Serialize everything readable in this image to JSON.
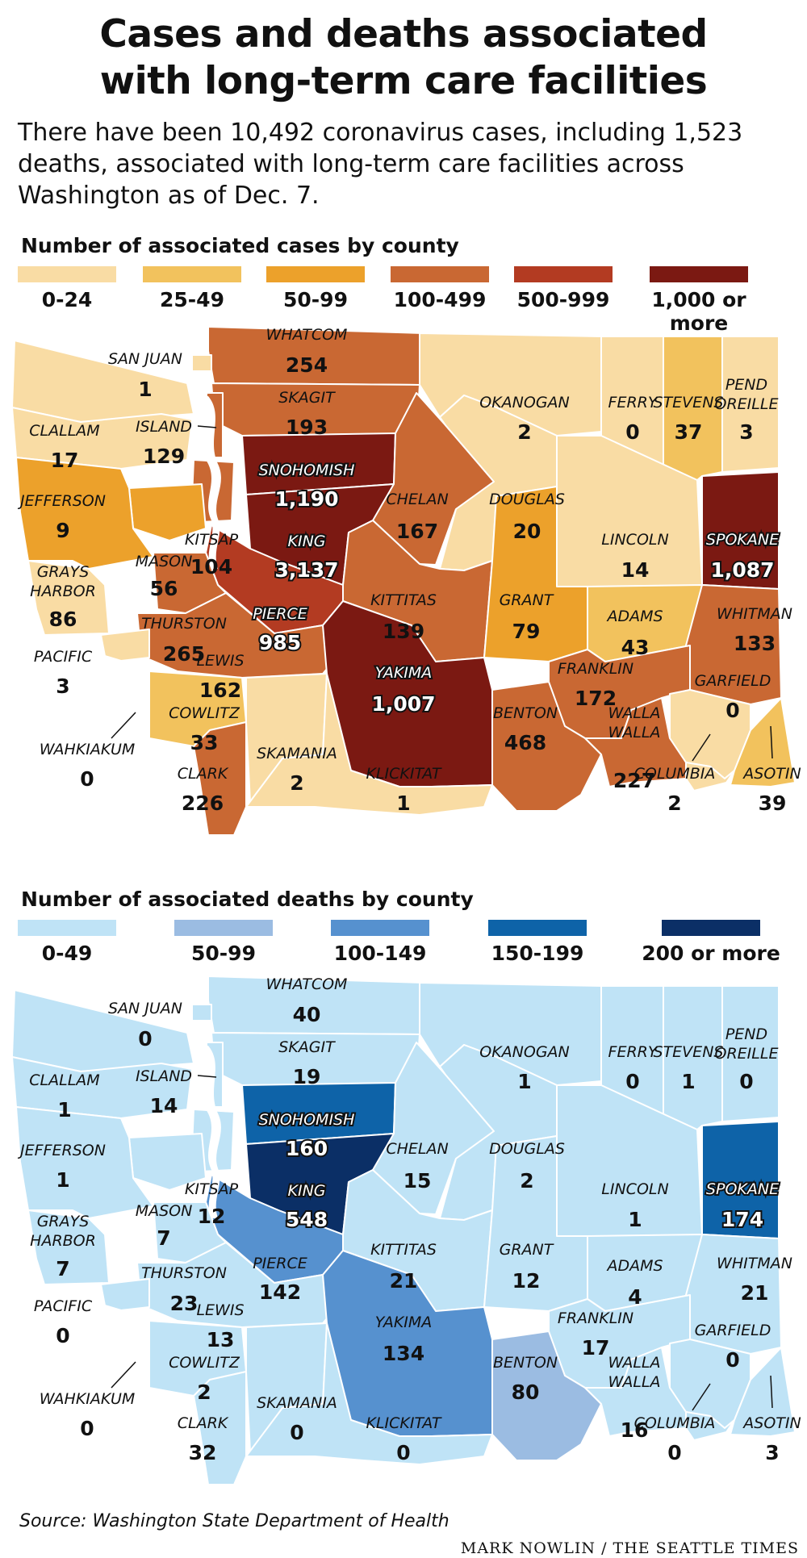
{
  "title_line1": "Cases and deaths associated",
  "title_line2": "with long-term care facilities",
  "intro": "There have been 10,492 coronavirus cases, including 1,523 deaths, associated with long-term care facilities across Washington as of Dec. 7.",
  "cases_map": {
    "legend_title": "Number of associated cases by county",
    "legend": [
      {
        "label": "0-24",
        "color": "#f9dca4"
      },
      {
        "label": "25-49",
        "color": "#f2c25d"
      },
      {
        "label": "50-99",
        "color": "#eca12b"
      },
      {
        "label": "100-499",
        "color": "#c96833"
      },
      {
        "label": "500-999",
        "color": "#b33b22"
      },
      {
        "label": "1,000 or more",
        "color": "#7b1912"
      }
    ],
    "counties": [
      {
        "name": "WHATCOM",
        "value": "254",
        "color": "#c96833"
      },
      {
        "name": "SAN JUAN",
        "value": "1",
        "color": "#f9dca4"
      },
      {
        "name": "SKAGIT",
        "value": "193",
        "color": "#c96833"
      },
      {
        "name": "OKANOGAN",
        "value": "2",
        "color": "#f9dca4"
      },
      {
        "name": "FERRY",
        "value": "0",
        "color": "#f9dca4"
      },
      {
        "name": "STEVENS",
        "value": "37",
        "color": "#f2c25d"
      },
      {
        "name": "PEND OREILLE",
        "value": "3",
        "color": "#f9dca4"
      },
      {
        "name": "CLALLAM",
        "value": "17",
        "color": "#f9dca4"
      },
      {
        "name": "ISLAND",
        "value": "129",
        "color": "#c96833"
      },
      {
        "name": "SNOHOMISH",
        "value": "1,190",
        "color": "#7b1912"
      },
      {
        "name": "CHELAN",
        "value": "167",
        "color": "#c96833"
      },
      {
        "name": "DOUGLAS",
        "value": "20",
        "color": "#f9dca4"
      },
      {
        "name": "JEFFERSON",
        "value": "9",
        "color": "#f9dca4"
      },
      {
        "name": "KITSAP",
        "value": "104",
        "color": "#c96833"
      },
      {
        "name": "KING",
        "value": "3,137",
        "color": "#7b1912"
      },
      {
        "name": "LINCOLN",
        "value": "14",
        "color": "#f9dca4"
      },
      {
        "name": "SPOKANE",
        "value": "1,087",
        "color": "#7b1912"
      },
      {
        "name": "MASON",
        "value": "56",
        "color": "#eca12b"
      },
      {
        "name": "GRAYS HARBOR",
        "value": "86",
        "color": "#eca12b"
      },
      {
        "name": "KITTITAS",
        "value": "139",
        "color": "#c96833"
      },
      {
        "name": "GRANT",
        "value": "79",
        "color": "#eca12b"
      },
      {
        "name": "ADAMS",
        "value": "43",
        "color": "#f2c25d"
      },
      {
        "name": "WHITMAN",
        "value": "133",
        "color": "#c96833"
      },
      {
        "name": "PIERCE",
        "value": "985",
        "color": "#b33b22"
      },
      {
        "name": "THURSTON",
        "value": "265",
        "color": "#c96833"
      },
      {
        "name": "PACIFIC",
        "value": "3",
        "color": "#f9dca4"
      },
      {
        "name": "LEWIS",
        "value": "162",
        "color": "#c96833"
      },
      {
        "name": "YAKIMA",
        "value": "1,007",
        "color": "#7b1912"
      },
      {
        "name": "FRANKLIN",
        "value": "172",
        "color": "#c96833"
      },
      {
        "name": "GARFIELD",
        "value": "0",
        "color": "#f9dca4"
      },
      {
        "name": "COWLITZ",
        "value": "33",
        "color": "#f2c25d"
      },
      {
        "name": "BENTON",
        "value": "468",
        "color": "#c96833"
      },
      {
        "name": "WALLA WALLA",
        "value": "227",
        "color": "#c96833"
      },
      {
        "name": "WAHKIAKUM",
        "value": "0",
        "color": "#f9dca4"
      },
      {
        "name": "SKAMANIA",
        "value": "2",
        "color": "#f9dca4"
      },
      {
        "name": "KLICKITAT",
        "value": "1",
        "color": "#f9dca4"
      },
      {
        "name": "CLARK",
        "value": "226",
        "color": "#c96833"
      },
      {
        "name": "COLUMBIA",
        "value": "2",
        "color": "#f9dca4"
      },
      {
        "name": "ASOTIN",
        "value": "39",
        "color": "#f2c25d"
      }
    ]
  },
  "deaths_map": {
    "legend_title": "Number of associated deaths by county",
    "legend": [
      {
        "label": "0-49",
        "color": "#bfe3f6"
      },
      {
        "label": "50-99",
        "color": "#9bbce2"
      },
      {
        "label": "100-149",
        "color": "#5691cf"
      },
      {
        "label": "150-199",
        "color": "#0e63a8"
      },
      {
        "label": "200 or more",
        "color": "#0b2f66"
      }
    ],
    "counties": [
      {
        "name": "WHATCOM",
        "value": "40",
        "color": "#bfe3f6"
      },
      {
        "name": "SAN JUAN",
        "value": "0",
        "color": "#bfe3f6"
      },
      {
        "name": "SKAGIT",
        "value": "19",
        "color": "#bfe3f6"
      },
      {
        "name": "OKANOGAN",
        "value": "1",
        "color": "#bfe3f6"
      },
      {
        "name": "FERRY",
        "value": "0",
        "color": "#bfe3f6"
      },
      {
        "name": "STEVENS",
        "value": "1",
        "color": "#bfe3f6"
      },
      {
        "name": "PEND OREILLE",
        "value": "0",
        "color": "#bfe3f6"
      },
      {
        "name": "CLALLAM",
        "value": "1",
        "color": "#bfe3f6"
      },
      {
        "name": "ISLAND",
        "value": "14",
        "color": "#bfe3f6"
      },
      {
        "name": "SNOHOMISH",
        "value": "160",
        "color": "#0e63a8"
      },
      {
        "name": "CHELAN",
        "value": "15",
        "color": "#bfe3f6"
      },
      {
        "name": "DOUGLAS",
        "value": "2",
        "color": "#bfe3f6"
      },
      {
        "name": "JEFFERSON",
        "value": "1",
        "color": "#bfe3f6"
      },
      {
        "name": "KITSAP",
        "value": "12",
        "color": "#bfe3f6"
      },
      {
        "name": "KING",
        "value": "548",
        "color": "#0b2f66"
      },
      {
        "name": "LINCOLN",
        "value": "1",
        "color": "#bfe3f6"
      },
      {
        "name": "SPOKANE",
        "value": "174",
        "color": "#0e63a8"
      },
      {
        "name": "MASON",
        "value": "7",
        "color": "#bfe3f6"
      },
      {
        "name": "GRAYS HARBOR",
        "value": "7",
        "color": "#bfe3f6"
      },
      {
        "name": "KITTITAS",
        "value": "21",
        "color": "#bfe3f6"
      },
      {
        "name": "GRANT",
        "value": "12",
        "color": "#bfe3f6"
      },
      {
        "name": "ADAMS",
        "value": "4",
        "color": "#bfe3f6"
      },
      {
        "name": "WHITMAN",
        "value": "21",
        "color": "#bfe3f6"
      },
      {
        "name": "PIERCE",
        "value": "142",
        "color": "#5691cf"
      },
      {
        "name": "THURSTON",
        "value": "23",
        "color": "#bfe3f6"
      },
      {
        "name": "PACIFIC",
        "value": "0",
        "color": "#bfe3f6"
      },
      {
        "name": "LEWIS",
        "value": "13",
        "color": "#bfe3f6"
      },
      {
        "name": "YAKIMA",
        "value": "134",
        "color": "#5691cf"
      },
      {
        "name": "FRANKLIN",
        "value": "17",
        "color": "#bfe3f6"
      },
      {
        "name": "GARFIELD",
        "value": "0",
        "color": "#bfe3f6"
      },
      {
        "name": "COWLITZ",
        "value": "2",
        "color": "#bfe3f6"
      },
      {
        "name": "BENTON",
        "value": "80",
        "color": "#9bbce2"
      },
      {
        "name": "WALLA WALLA",
        "value": "16",
        "color": "#bfe3f6"
      },
      {
        "name": "WAHKIAKUM",
        "value": "0",
        "color": "#bfe3f6"
      },
      {
        "name": "SKAMANIA",
        "value": "0",
        "color": "#bfe3f6"
      },
      {
        "name": "KLICKITAT",
        "value": "0",
        "color": "#bfe3f6"
      },
      {
        "name": "CLARK",
        "value": "32",
        "color": "#bfe3f6"
      },
      {
        "name": "COLUMBIA",
        "value": "0",
        "color": "#bfe3f6"
      },
      {
        "name": "ASOTIN",
        "value": "3",
        "color": "#bfe3f6"
      }
    ]
  },
  "source": "Source: Washington State Department of Health",
  "credit": "MARK NOWLIN / THE SEATTLE TIMES"
}
